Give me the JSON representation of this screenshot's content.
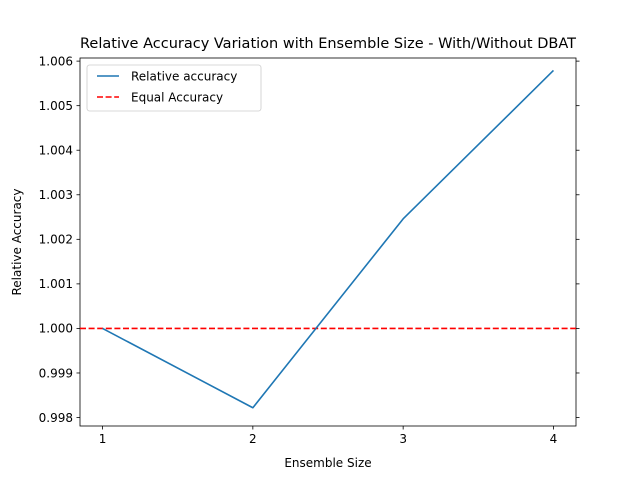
{
  "chart_data": {
    "type": "line",
    "title": "Relative Accuracy Variation with Ensemble Size - With/Without DBAT",
    "xlabel": "Ensemble Size",
    "ylabel": "Relative Accuracy",
    "x": [
      1,
      2,
      3,
      4
    ],
    "xticks": [
      "1",
      "2",
      "3",
      "4"
    ],
    "yticks": [
      "0.998",
      "0.999",
      "1.000",
      "1.001",
      "1.002",
      "1.003",
      "1.004",
      "1.005",
      "1.006"
    ],
    "xlim": [
      0.85,
      4.15
    ],
    "ylim": [
      0.99781,
      1.00607
    ],
    "series": [
      {
        "name": "Relative accuracy",
        "values": [
          1.0,
          0.99822,
          1.00246,
          1.00579
        ],
        "color": "#1f77b4",
        "style": "solid"
      }
    ],
    "reference_lines": [
      {
        "name": "Equal Accuracy",
        "y": 1.0,
        "color": "#ff0000",
        "style": "dashed"
      }
    ],
    "legend": {
      "position": "top-left",
      "entries": [
        "Relative accuracy",
        "Equal Accuracy"
      ]
    },
    "grid": false
  }
}
